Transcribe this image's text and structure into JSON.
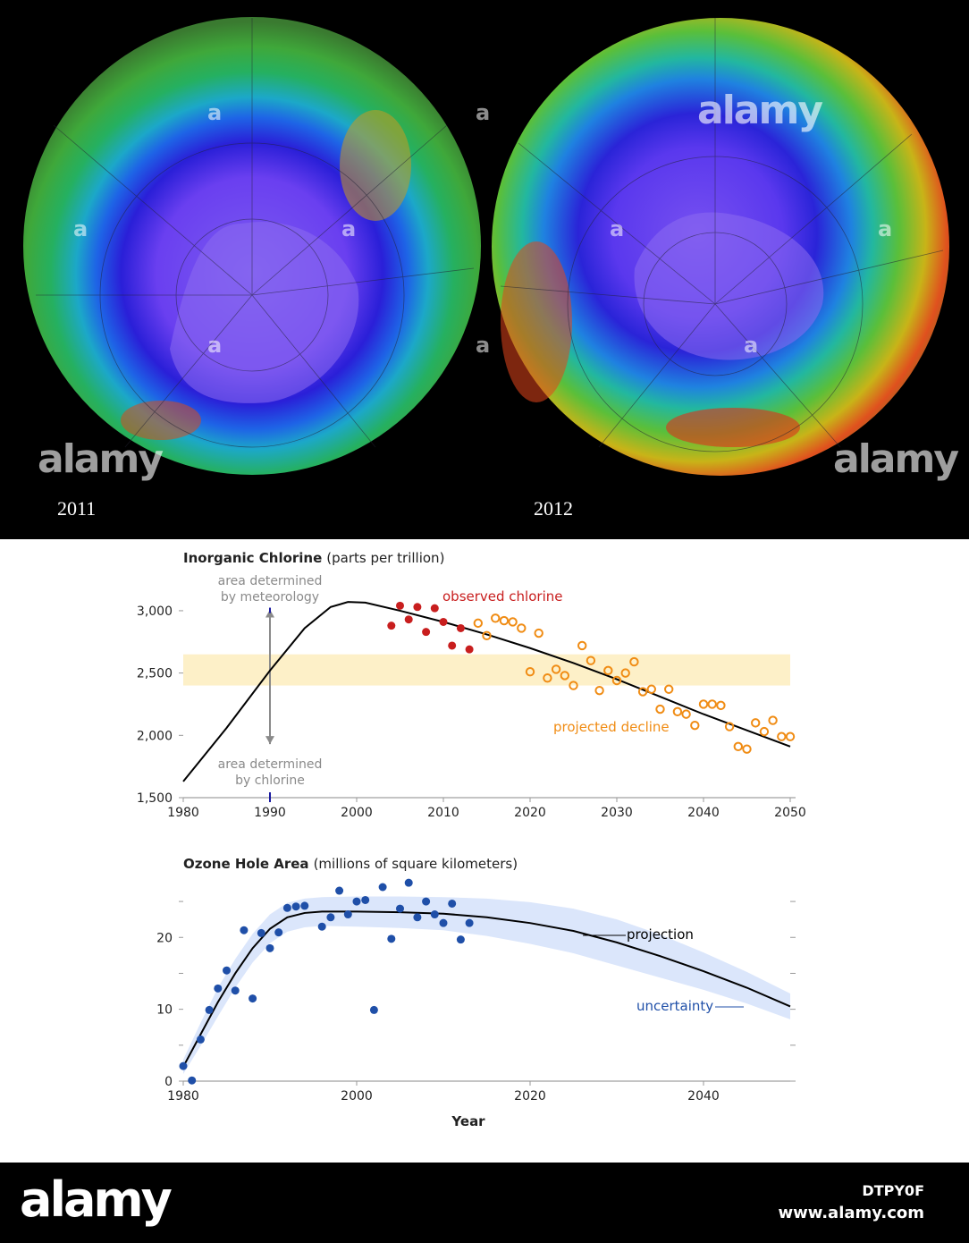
{
  "maps": {
    "left_year": "2011",
    "right_year": "2012"
  },
  "watermarks": {
    "brand": "alamy",
    "small": "a"
  },
  "footer": {
    "logo": "alamy",
    "image_id": "DTPY0F",
    "url": "www.alamy.com"
  },
  "colors": {
    "observed": "#c81e1e",
    "projected": "#f08c14",
    "curve": "#000000",
    "band_chlorine": "#fdf0c8",
    "ozone_points": "#1f4fa8",
    "uncertainty_band": "#dbe6fb",
    "annotation_gray": "#8a8a8a"
  },
  "chart_data": [
    {
      "type": "scatter",
      "title": "Inorganic Chlorine",
      "subtitle": "(parts per trillion)",
      "xlim": [
        1980,
        2050
      ],
      "ylim": [
        1500,
        3100
      ],
      "x_ticks": [
        1980,
        1990,
        2000,
        2010,
        2020,
        2030,
        2040,
        2050
      ],
      "y_ticks": [
        1500,
        2000,
        2500,
        3000
      ],
      "y_tick_labels": [
        "1,500",
        "2,000",
        "2,500",
        "3,000"
      ],
      "band": [
        2400,
        2650
      ],
      "annotations": {
        "meteorology": [
          "area determined",
          "by meteorology"
        ],
        "chlorine": [
          "area determined",
          "by chlorine"
        ],
        "observed_label": "observed chlorine",
        "projected_label": "projected decline"
      },
      "curve": {
        "x": [
          1980,
          1985,
          1990,
          1994,
          1997,
          1999,
          2001,
          2005,
          2010,
          2015,
          2020,
          2025,
          2030,
          2035,
          2040,
          2045,
          2050
        ],
        "y": [
          1630,
          2060,
          2520,
          2860,
          3030,
          3070,
          3065,
          3000,
          2910,
          2810,
          2700,
          2580,
          2450,
          2310,
          2170,
          2040,
          1910
        ]
      },
      "series": [
        {
          "name": "observed chlorine",
          "x": [
            2004,
            2005,
            2006,
            2007,
            2008,
            2009,
            2010,
            2011,
            2012,
            2013
          ],
          "y": [
            2880,
            3040,
            2930,
            3030,
            2830,
            3020,
            2910,
            2720,
            2860,
            2690
          ]
        },
        {
          "name": "projected decline",
          "x": [
            2014,
            2015,
            2016,
            2017,
            2018,
            2019,
            2020,
            2021,
            2022,
            2023,
            2024,
            2025,
            2026,
            2027,
            2028,
            2029,
            2030,
            2031,
            2032,
            2033,
            2034,
            2035,
            2036,
            2037,
            2038,
            2039,
            2040,
            2041,
            2042,
            2043,
            2044,
            2045,
            2046,
            2047,
            2048,
            2049,
            2050
          ],
          "y": [
            2900,
            2800,
            2940,
            2920,
            2910,
            2860,
            2510,
            2820,
            2460,
            2530,
            2480,
            2400,
            2720,
            2600,
            2360,
            2520,
            2440,
            2500,
            2590,
            2350,
            2370,
            2210,
            2370,
            2190,
            2170,
            2080,
            2250,
            2250,
            2240,
            2070,
            1910,
            1890,
            2100,
            2030,
            2120,
            1990,
            1990
          ]
        }
      ]
    },
    {
      "type": "scatter",
      "title": "Ozone Hole Area",
      "subtitle": "(millions of square kilometers)",
      "xlabel": "Year",
      "xlim": [
        1980,
        2050
      ],
      "ylim": [
        0,
        27
      ],
      "x_ticks": [
        1980,
        2000,
        2020,
        2040
      ],
      "y_ticks": [
        0,
        10,
        20
      ],
      "annotations": {
        "projection_label": "projection",
        "uncertainty_label": "uncertainty"
      },
      "curve": {
        "x": [
          1980,
          1982,
          1984,
          1986,
          1988,
          1990,
          1992,
          1994,
          1996,
          2000,
          2005,
          2010,
          2015,
          2020,
          2025,
          2030,
          2035,
          2040,
          2045,
          2050
        ],
        "y": [
          2.0,
          6.5,
          11.0,
          15.0,
          18.5,
          21.2,
          22.8,
          23.4,
          23.6,
          23.6,
          23.5,
          23.3,
          22.8,
          22.0,
          20.9,
          19.3,
          17.4,
          15.3,
          13.0,
          10.4
        ]
      },
      "uncertainty": {
        "x": [
          1980,
          1982,
          1984,
          1986,
          1988,
          1990,
          1992,
          1994,
          1996,
          2000,
          2005,
          2010,
          2015,
          2020,
          2025,
          2030,
          2035,
          2040,
          2045,
          2050
        ],
        "half_width": [
          1.0,
          1.6,
          2.0,
          2.0,
          2.0,
          2.0,
          2.0,
          2.0,
          2.0,
          2.1,
          2.2,
          2.3,
          2.6,
          2.9,
          3.1,
          3.2,
          3.0,
          2.6,
          2.2,
          1.8
        ]
      },
      "series": [
        {
          "name": "ozone hole area",
          "x": [
            1980,
            1981,
            1982,
            1983,
            1984,
            1985,
            1986,
            1987,
            1988,
            1989,
            1990,
            1991,
            1992,
            1993,
            1994,
            1996,
            1997,
            1998,
            1999,
            2000,
            2001,
            2002,
            2003,
            2004,
            2005,
            2006,
            2007,
            2008,
            2009,
            2010,
            2011,
            2012,
            2013
          ],
          "y": [
            2.1,
            0.1,
            5.8,
            9.9,
            12.9,
            15.4,
            12.6,
            21.0,
            11.5,
            20.6,
            18.5,
            20.7,
            24.1,
            24.3,
            24.4,
            21.5,
            22.8,
            26.5,
            23.2,
            25.0,
            25.2,
            9.9,
            27.0,
            19.8,
            24.0,
            27.6,
            22.8,
            25.0,
            23.2,
            22.0,
            24.7,
            19.7,
            22.0
          ]
        }
      ]
    }
  ]
}
